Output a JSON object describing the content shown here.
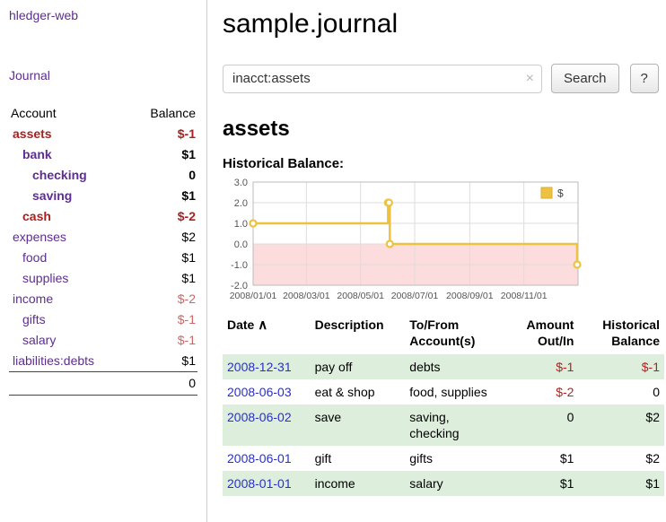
{
  "colors": {
    "link_purple": "#5e2d91",
    "date_link_blue": "#2a2fc9",
    "negative_strong": "#a8201f",
    "negative_light": "#cc6666",
    "table_negative": "#b52020",
    "row_green": "#ddeedd"
  },
  "sidebar": {
    "app_title": "hledger-web",
    "journal_link": "Journal",
    "header": {
      "account": "Account",
      "balance": "Balance"
    },
    "accounts": [
      {
        "name": "assets",
        "balance": "$-1",
        "indent": 0,
        "bold": true,
        "neg": true
      },
      {
        "name": "bank",
        "balance": "$1",
        "indent": 1,
        "bold": true,
        "neg": false
      },
      {
        "name": "checking",
        "balance": "0",
        "indent": 2,
        "bold": true,
        "neg": false
      },
      {
        "name": "saving",
        "balance": "$1",
        "indent": 2,
        "bold": true,
        "neg": false
      },
      {
        "name": "cash",
        "balance": "$-2",
        "indent": 1,
        "bold": true,
        "neg": true
      },
      {
        "name": "expenses",
        "balance": "$2",
        "indent": 0,
        "bold": false,
        "neg": false
      },
      {
        "name": "food",
        "balance": "$1",
        "indent": 1,
        "bold": false,
        "neg": false
      },
      {
        "name": "supplies",
        "balance": "$1",
        "indent": 1,
        "bold": false,
        "neg": false
      },
      {
        "name": "income",
        "balance": "$-2",
        "indent": 0,
        "bold": false,
        "neg": true
      },
      {
        "name": "gifts",
        "balance": "$-1",
        "indent": 1,
        "bold": false,
        "neg": true
      },
      {
        "name": "salary",
        "balance": "$-1",
        "indent": 1,
        "bold": false,
        "neg": true
      },
      {
        "name": "liabilities:debts",
        "balance": "$1",
        "indent": 0,
        "bold": false,
        "neg": false
      }
    ],
    "total": "0"
  },
  "main": {
    "title": "sample.journal",
    "search": {
      "value": "inacct:assets",
      "clear_icon": "×",
      "button_label": "Search",
      "help_label": "?"
    },
    "account_heading": "assets",
    "chart_label": "Historical Balance:"
  },
  "chart_data": {
    "type": "line",
    "style": "step",
    "title": "Historical Balance",
    "legend": {
      "label": "$",
      "position": "top-right"
    },
    "series_color": "#edc240",
    "legend_box_border": "#d9ae35",
    "negative_fill": "#fcdcdc",
    "grid_color": "#dddddd",
    "x_ticks": [
      "2008/01/01",
      "2008/03/01",
      "2008/05/01",
      "2008/07/01",
      "2008/09/01",
      "2008/11/01"
    ],
    "y_ticks": [
      3,
      2,
      1,
      0,
      -1,
      -2
    ],
    "ylim": [
      -2,
      3
    ],
    "xlim": [
      "2008-01-01",
      "2009-01-01"
    ],
    "points": [
      {
        "x": "2008-01-01",
        "y": 1
      },
      {
        "x": "2008-06-01",
        "y": 2
      },
      {
        "x": "2008-06-02",
        "y": 2
      },
      {
        "x": "2008-06-03",
        "y": 0
      },
      {
        "x": "2008-12-31",
        "y": -1
      }
    ]
  },
  "register": {
    "header": {
      "date": "Date",
      "sort_icon": "∧",
      "description": "Description",
      "accounts": "To/From Account(s)",
      "amount": "Amount Out/In",
      "balance": "Historical Balance"
    },
    "rows": [
      {
        "date": "2008-12-31",
        "description": "pay off",
        "accounts": "debts",
        "amount": "$-1",
        "balance": "$-1"
      },
      {
        "date": "2008-06-03",
        "description": "eat & shop",
        "accounts": "food, supplies",
        "amount": "$-2",
        "balance": "0"
      },
      {
        "date": "2008-06-02",
        "description": "save",
        "accounts": "saving, checking",
        "amount": "0",
        "balance": "$2"
      },
      {
        "date": "2008-06-01",
        "description": "gift",
        "accounts": "gifts",
        "amount": "$1",
        "balance": "$2"
      },
      {
        "date": "2008-01-01",
        "description": "income",
        "accounts": "salary",
        "amount": "$1",
        "balance": "$1"
      }
    ]
  }
}
